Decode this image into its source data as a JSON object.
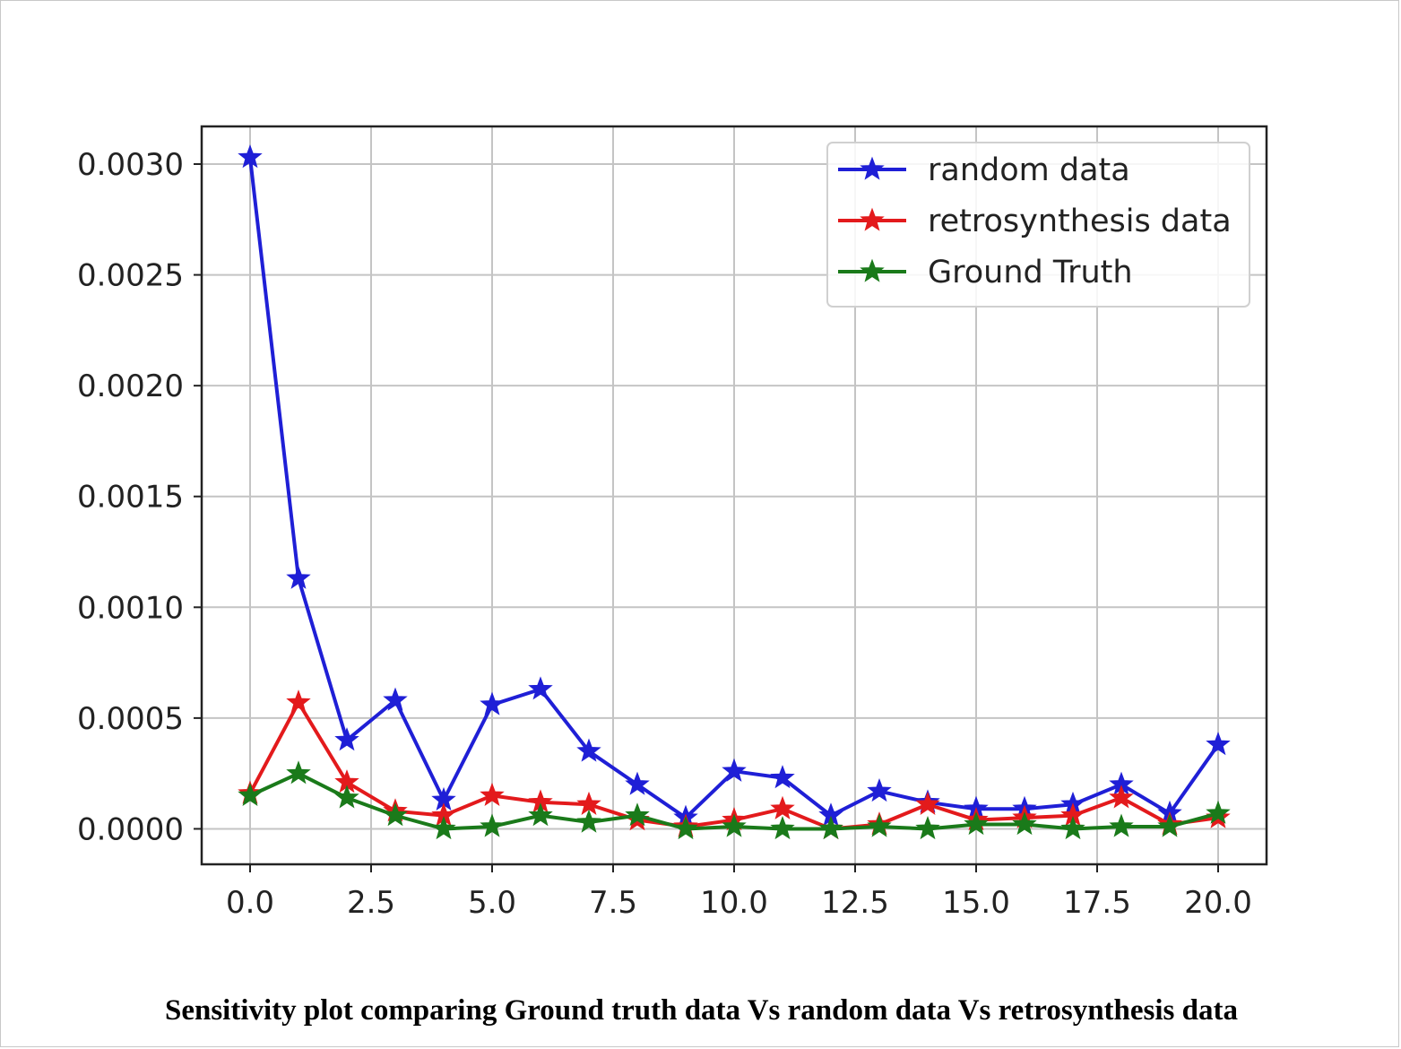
{
  "caption": "Sensitivity plot comparing Ground truth data Vs random data Vs retrosynthesis data",
  "chart_data": {
    "type": "line",
    "title": "",
    "xlabel": "",
    "ylabel": "",
    "xlim": [
      -1.0,
      21.0
    ],
    "ylim": [
      -0.00016,
      0.00317
    ],
    "x_ticks": [
      0.0,
      2.5,
      5.0,
      7.5,
      10.0,
      12.5,
      15.0,
      17.5,
      20.0
    ],
    "x_tick_labels": [
      "0.0",
      "2.5",
      "5.0",
      "7.5",
      "10.0",
      "12.5",
      "15.0",
      "17.5",
      "20.0"
    ],
    "y_ticks": [
      0.0,
      0.0005,
      0.001,
      0.0015,
      0.002,
      0.0025,
      0.003
    ],
    "y_tick_labels": [
      "0.0000",
      "0.0005",
      "0.0010",
      "0.0015",
      "0.0020",
      "0.0025",
      "0.0030"
    ],
    "grid": true,
    "legend_position": "top-right",
    "marker": "star",
    "x": [
      0,
      1,
      2,
      3,
      4,
      5,
      6,
      7,
      8,
      9,
      10,
      11,
      12,
      13,
      14,
      15,
      16,
      17,
      18,
      19,
      20
    ],
    "series": [
      {
        "name": "random data",
        "color": "#1f1fd6",
        "values": [
          0.00303,
          0.00113,
          0.0004,
          0.00058,
          0.00013,
          0.00056,
          0.00063,
          0.00035,
          0.0002,
          5e-05,
          0.00026,
          0.00023,
          6e-05,
          0.00017,
          0.00012,
          9e-05,
          9e-05,
          0.00011,
          0.0002,
          7e-05,
          0.00038
        ]
      },
      {
        "name": "retrosynthesis data",
        "color": "#e31a1c",
        "values": [
          0.00016,
          0.00057,
          0.00021,
          8e-05,
          6e-05,
          0.00015,
          0.00012,
          0.00011,
          4e-05,
          1e-05,
          4e-05,
          9e-05,
          0.0,
          2e-05,
          0.00011,
          4e-05,
          5e-05,
          6e-05,
          0.00014,
          2e-05,
          5e-05
        ]
      },
      {
        "name": "Ground Truth",
        "color": "#1a7a1a",
        "values": [
          0.00015,
          0.00025,
          0.00014,
          6e-05,
          0.0,
          1e-05,
          6e-05,
          3e-05,
          6e-05,
          0.0,
          1e-05,
          0.0,
          0.0,
          1e-05,
          0.0,
          2e-05,
          2e-05,
          0.0,
          1e-05,
          1e-05,
          7e-05
        ]
      }
    ]
  }
}
